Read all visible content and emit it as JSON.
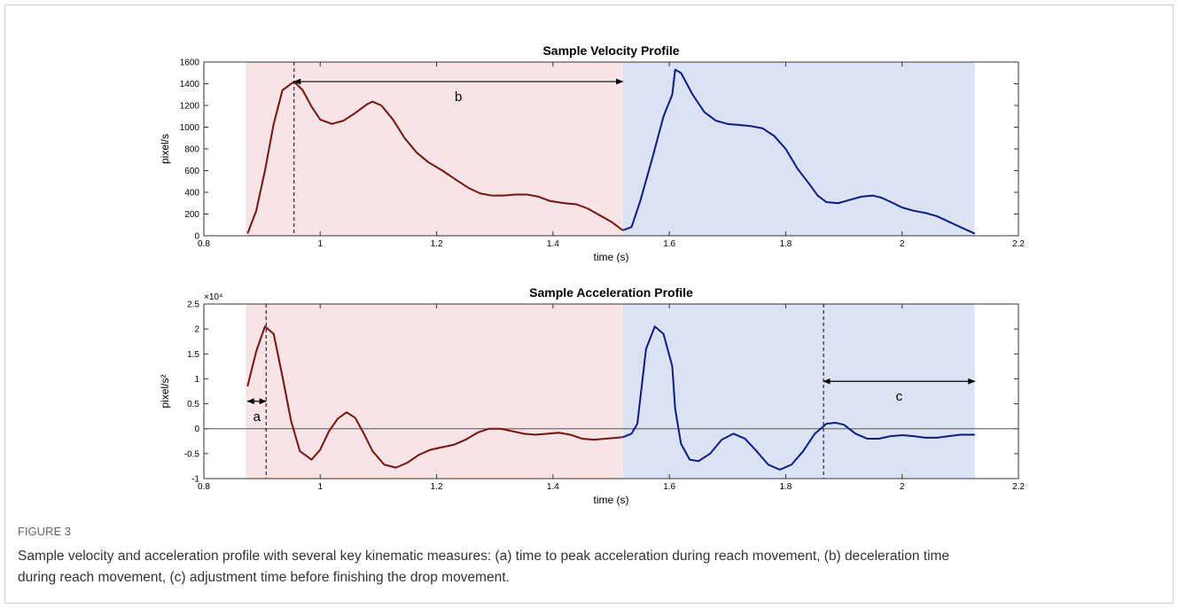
{
  "chart_data": [
    {
      "type": "line",
      "title": "Sample Velocity Profile",
      "xlabel": "time (s)",
      "ylabel": "pixel/s",
      "xlim": [
        0.8,
        2.2
      ],
      "xticks": [
        0.8,
        1,
        1.2,
        1.4,
        1.6,
        1.8,
        2,
        2.2
      ],
      "ylim": [
        0,
        1600
      ],
      "yticks": [
        0,
        200,
        400,
        600,
        800,
        1000,
        1200,
        1400,
        1600
      ],
      "regions": [
        {
          "x": [
            0.872,
            1.52
          ],
          "color": "#f7e4e5"
        },
        {
          "x": [
            1.52,
            2.125
          ],
          "color": "#dbe3f3"
        }
      ],
      "series": [
        {
          "color": "#7a1010",
          "x": [
            0.875,
            0.89,
            0.905,
            0.92,
            0.935,
            0.955,
            0.97,
            0.985,
            1.0,
            1.02,
            1.04,
            1.06,
            1.08,
            1.09,
            1.105,
            1.125,
            1.145,
            1.165,
            1.185,
            1.21,
            1.235,
            1.255,
            1.275,
            1.295,
            1.315,
            1.335,
            1.355,
            1.375,
            1.395,
            1.42,
            1.44,
            1.46,
            1.48,
            1.5,
            1.52
          ],
          "values": [
            20,
            230,
            600,
            1030,
            1340,
            1420,
            1340,
            1190,
            1070,
            1030,
            1060,
            1130,
            1210,
            1235,
            1200,
            1070,
            900,
            770,
            680,
            600,
            510,
            440,
            390,
            370,
            370,
            380,
            380,
            360,
            320,
            300,
            290,
            250,
            190,
            130,
            50
          ]
        },
        {
          "color": "#0b1a8c",
          "x": [
            1.52,
            1.535,
            1.55,
            1.57,
            1.59,
            1.605,
            1.61,
            1.62,
            1.64,
            1.66,
            1.68,
            1.7,
            1.72,
            1.74,
            1.76,
            1.78,
            1.8,
            1.82,
            1.84,
            1.855,
            1.87,
            1.89,
            1.91,
            1.93,
            1.95,
            1.965,
            1.985,
            2.0,
            2.02,
            2.04,
            2.06,
            2.08,
            2.1,
            2.125
          ],
          "values": [
            50,
            80,
            320,
            700,
            1100,
            1300,
            1530,
            1500,
            1300,
            1140,
            1060,
            1030,
            1020,
            1010,
            990,
            920,
            800,
            620,
            480,
            370,
            310,
            300,
            330,
            360,
            370,
            350,
            300,
            260,
            230,
            210,
            180,
            130,
            80,
            20
          ]
        }
      ],
      "vlines": [
        0.955
      ],
      "arrows": [
        {
          "label": "b",
          "x": [
            0.955,
            1.52
          ],
          "y": 1420
        }
      ]
    },
    {
      "type": "line",
      "title": "Sample Acceleration Profile",
      "xlabel": "time (s)",
      "ylabel": "pixel/s²",
      "y_exponent_label": "×10⁴",
      "xlim": [
        0.8,
        2.2
      ],
      "xticks": [
        0.8,
        1,
        1.2,
        1.4,
        1.6,
        1.8,
        2,
        2.2
      ],
      "ylim": [
        -1,
        2.5
      ],
      "yticks": [
        -1,
        -0.5,
        0,
        0.5,
        1,
        1.5,
        2,
        2.5
      ],
      "zero_line": true,
      "regions": [
        {
          "x": [
            0.872,
            1.52
          ],
          "color": "#f7e4e5"
        },
        {
          "x": [
            1.52,
            2.125
          ],
          "color": "#dbe3f3"
        }
      ],
      "series": [
        {
          "color": "#7a1010",
          "x": [
            0.875,
            0.89,
            0.905,
            0.92,
            0.935,
            0.95,
            0.965,
            0.985,
            1.0,
            1.015,
            1.03,
            1.045,
            1.06,
            1.075,
            1.09,
            1.11,
            1.13,
            1.15,
            1.17,
            1.19,
            1.21,
            1.23,
            1.25,
            1.27,
            1.29,
            1.31,
            1.33,
            1.35,
            1.37,
            1.39,
            1.41,
            1.43,
            1.45,
            1.47,
            1.49,
            1.51,
            1.52
          ],
          "values": [
            0.85,
            1.55,
            2.05,
            1.9,
            1.05,
            0.15,
            -0.45,
            -0.62,
            -0.42,
            -0.05,
            0.2,
            0.33,
            0.22,
            -0.1,
            -0.45,
            -0.72,
            -0.78,
            -0.68,
            -0.52,
            -0.42,
            -0.37,
            -0.32,
            -0.22,
            -0.08,
            0,
            0,
            -0.05,
            -0.1,
            -0.12,
            -0.1,
            -0.08,
            -0.12,
            -0.2,
            -0.22,
            -0.2,
            -0.18,
            -0.17
          ]
        },
        {
          "color": "#0b1a8c",
          "x": [
            1.52,
            1.535,
            1.545,
            1.56,
            1.575,
            1.59,
            1.605,
            1.61,
            1.62,
            1.635,
            1.65,
            1.67,
            1.69,
            1.71,
            1.73,
            1.75,
            1.77,
            1.79,
            1.81,
            1.83,
            1.85,
            1.87,
            1.885,
            1.9,
            1.92,
            1.94,
            1.96,
            1.98,
            2.0,
            2.02,
            2.04,
            2.06,
            2.08,
            2.1,
            2.125
          ],
          "values": [
            -0.17,
            -0.1,
            0.1,
            1.6,
            2.05,
            1.9,
            1.25,
            0.4,
            -0.3,
            -0.62,
            -0.65,
            -0.5,
            -0.22,
            -0.1,
            -0.2,
            -0.45,
            -0.72,
            -0.82,
            -0.72,
            -0.45,
            -0.1,
            0.1,
            0.12,
            0.08,
            -0.1,
            -0.2,
            -0.2,
            -0.15,
            -0.13,
            -0.15,
            -0.18,
            -0.18,
            -0.15,
            -0.12,
            -0.12
          ]
        }
      ],
      "vlines": [
        0.907,
        1.865
      ],
      "arrows": [
        {
          "label": "a",
          "x": [
            0.875,
            0.907
          ],
          "y": 0.55
        },
        {
          "label": "c",
          "x": [
            1.865,
            2.125
          ],
          "y": 0.95
        }
      ]
    }
  ],
  "caption": {
    "label": "FIGURE 3",
    "text": "Sample velocity and acceleration profile with several key kinematic measures: (a) time to peak acceleration during reach movement, (b) deceleration time during reach movement, (c) adjustment time before finishing the drop movement."
  }
}
